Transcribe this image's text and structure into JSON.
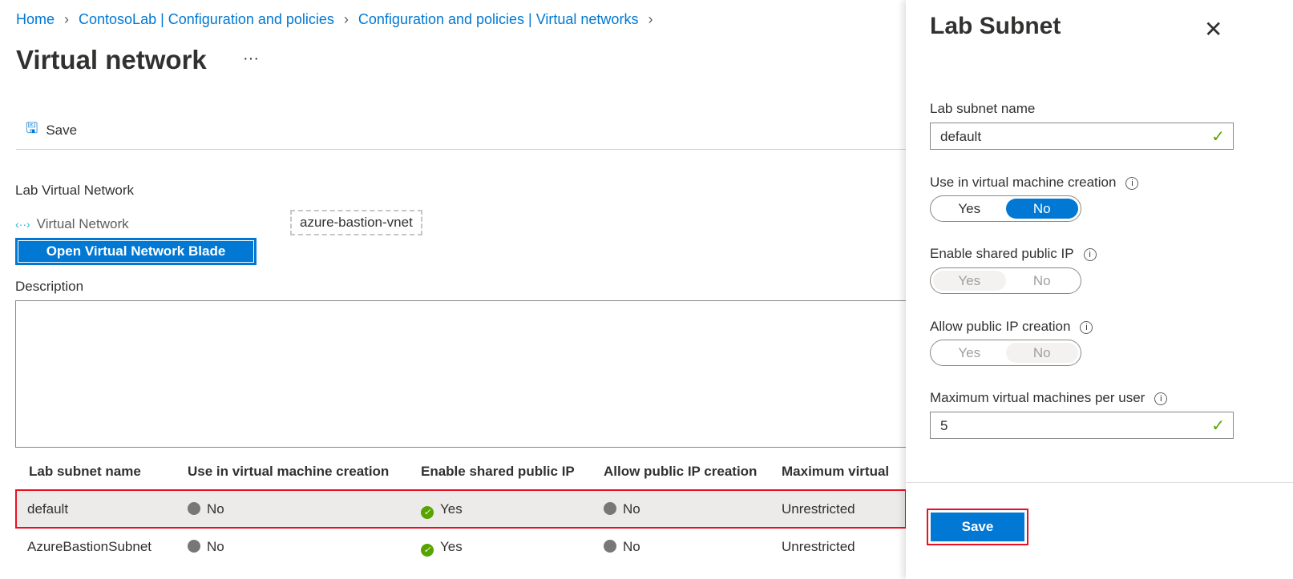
{
  "breadcrumb": [
    "Home",
    "ContosoLab | Configuration and policies",
    "Configuration and policies | Virtual networks"
  ],
  "page_title": "Virtual network",
  "more": "···",
  "toolbar": {
    "save_label": "Save"
  },
  "lab_vnet": {
    "section": "Lab Virtual Network",
    "label": "Virtual Network",
    "value": "azure-bastion-vnet",
    "open_button": "Open Virtual Network Blade"
  },
  "description_label": "Description",
  "table": {
    "headers": [
      "Lab subnet name",
      "Use in virtual machine creation",
      "Enable shared public IP",
      "Allow public IP creation",
      "Maximum virtual"
    ],
    "rows": [
      {
        "name": "default",
        "use": "No",
        "shared": "Yes",
        "allow": "No",
        "max": "Unrestricted",
        "selected": true
      },
      {
        "name": "AzureBastionSubnet",
        "use": "No",
        "shared": "Yes",
        "allow": "No",
        "max": "Unrestricted",
        "selected": false
      }
    ]
  },
  "panel": {
    "title": "Lab Subnet",
    "name_label": "Lab subnet name",
    "name_value": "default",
    "use_label": "Use in virtual machine creation",
    "use_value": "No",
    "shared_label": "Enable shared public IP",
    "shared_value": "Yes",
    "allow_label": "Allow public IP creation",
    "allow_value": "No",
    "max_label": "Maximum virtual machines per user",
    "max_value": "5",
    "yes": "Yes",
    "no": "No",
    "save": "Save"
  }
}
